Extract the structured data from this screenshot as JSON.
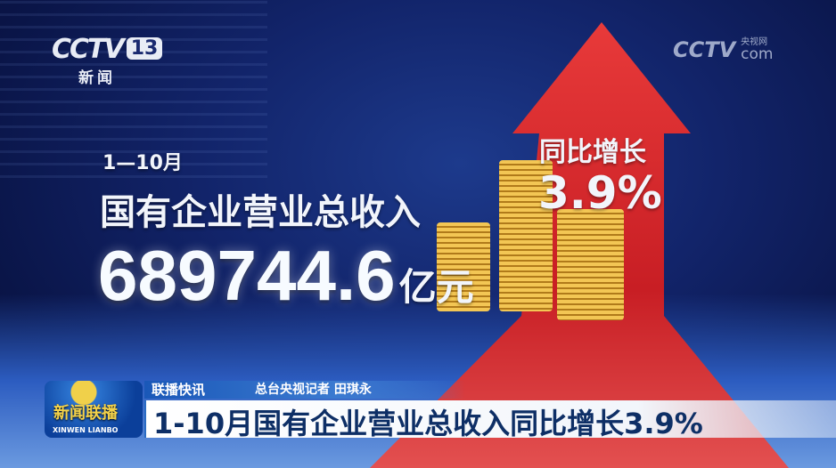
{
  "channel_logo": {
    "brand": "CCTV",
    "number": "13",
    "name": "新闻"
  },
  "watermark": {
    "brand": "CCTV",
    "cn": "央视网",
    "suffix": "com"
  },
  "infographic": {
    "period": "1—10月",
    "label": "国有企业营业总收入",
    "value": "689744.6",
    "unit": "亿元",
    "growth_label": "同比增长",
    "growth_value": "3.9%"
  },
  "lower_third": {
    "program_cn": "新闻联播",
    "program_en": "XINWEN LIANBO",
    "segment": "联播快讯",
    "reporter": "总台央视记者 田琪永",
    "headline": "1-10月国有企业营业总收入同比增长3.9%"
  },
  "colors": {
    "arrow": "#d42a2a",
    "background": "#12246a",
    "headline_text": "#0e2f66"
  }
}
